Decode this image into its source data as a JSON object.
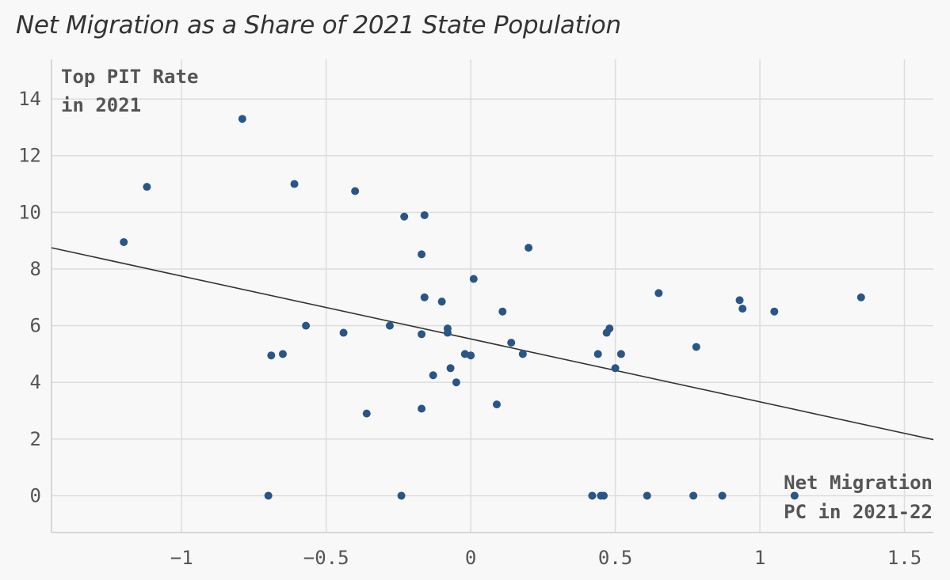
{
  "title": "Net Migration as a Share of 2021 State Population",
  "chart_data": {
    "type": "scatter",
    "title": "Net Migration as a Share of 2021 State Population",
    "ylabel_lines": [
      "Top PIT Rate",
      "in 2021"
    ],
    "xlabel_lines": [
      "Net Migration",
      "PC in 2021-22"
    ],
    "xlim": [
      -1.45,
      1.6
    ],
    "ylim": [
      -1.3,
      15.4
    ],
    "xticks": [
      -1,
      -0.5,
      0,
      0.5,
      1,
      1.5
    ],
    "xtick_labels": [
      "−1",
      "−0.5",
      "0",
      "0.5",
      "1",
      "1.5"
    ],
    "yticks": [
      0,
      2,
      4,
      6,
      8,
      10,
      12,
      14
    ],
    "ytick_labels": [
      "0",
      "2",
      "4",
      "6",
      "8",
      "10",
      "12",
      "14"
    ],
    "grid": true,
    "point_color": "#2a5587",
    "trendline_color": "#333333",
    "grid_color": "#dddddd",
    "trendline": [
      [
        -1.45,
        8.75
      ],
      [
        1.6,
        1.98
      ]
    ],
    "points": [
      {
        "x": -1.2,
        "y": 8.95
      },
      {
        "x": -1.12,
        "y": 10.9
      },
      {
        "x": -0.79,
        "y": 13.3
      },
      {
        "x": -0.7,
        "y": 0.0
      },
      {
        "x": -0.69,
        "y": 4.95
      },
      {
        "x": -0.65,
        "y": 5.0
      },
      {
        "x": -0.61,
        "y": 11.0
      },
      {
        "x": -0.57,
        "y": 6.0
      },
      {
        "x": -0.44,
        "y": 5.75
      },
      {
        "x": -0.4,
        "y": 10.75
      },
      {
        "x": -0.36,
        "y": 2.9
      },
      {
        "x": -0.28,
        "y": 6.0
      },
      {
        "x": -0.24,
        "y": 0.0
      },
      {
        "x": -0.23,
        "y": 9.85
      },
      {
        "x": -0.17,
        "y": 8.52
      },
      {
        "x": -0.17,
        "y": 5.7
      },
      {
        "x": -0.17,
        "y": 3.07
      },
      {
        "x": -0.16,
        "y": 9.9
      },
      {
        "x": -0.16,
        "y": 7.0
      },
      {
        "x": -0.13,
        "y": 4.25
      },
      {
        "x": -0.1,
        "y": 6.85
      },
      {
        "x": -0.08,
        "y": 5.9
      },
      {
        "x": -0.08,
        "y": 5.75
      },
      {
        "x": -0.07,
        "y": 4.5
      },
      {
        "x": -0.05,
        "y": 4.0
      },
      {
        "x": -0.02,
        "y": 5.0
      },
      {
        "x": 0.0,
        "y": 4.95
      },
      {
        "x": 0.01,
        "y": 7.65
      },
      {
        "x": 0.09,
        "y": 3.22
      },
      {
        "x": 0.11,
        "y": 6.5
      },
      {
        "x": 0.14,
        "y": 5.4
      },
      {
        "x": 0.18,
        "y": 5.0
      },
      {
        "x": 0.2,
        "y": 8.75
      },
      {
        "x": 0.42,
        "y": 0.0
      },
      {
        "x": 0.44,
        "y": 5.0
      },
      {
        "x": 0.45,
        "y": 0.0
      },
      {
        "x": 0.46,
        "y": 0.0
      },
      {
        "x": 0.47,
        "y": 5.75
      },
      {
        "x": 0.48,
        "y": 5.9
      },
      {
        "x": 0.5,
        "y": 4.5
      },
      {
        "x": 0.52,
        "y": 5.0
      },
      {
        "x": 0.61,
        "y": 0.0
      },
      {
        "x": 0.65,
        "y": 7.15
      },
      {
        "x": 0.77,
        "y": 0.0
      },
      {
        "x": 0.78,
        "y": 5.25
      },
      {
        "x": 0.87,
        "y": 0.0
      },
      {
        "x": 0.93,
        "y": 6.9
      },
      {
        "x": 0.94,
        "y": 6.6
      },
      {
        "x": 1.05,
        "y": 6.5
      },
      {
        "x": 1.12,
        "y": 0.0
      },
      {
        "x": 1.35,
        "y": 7.0
      }
    ]
  }
}
